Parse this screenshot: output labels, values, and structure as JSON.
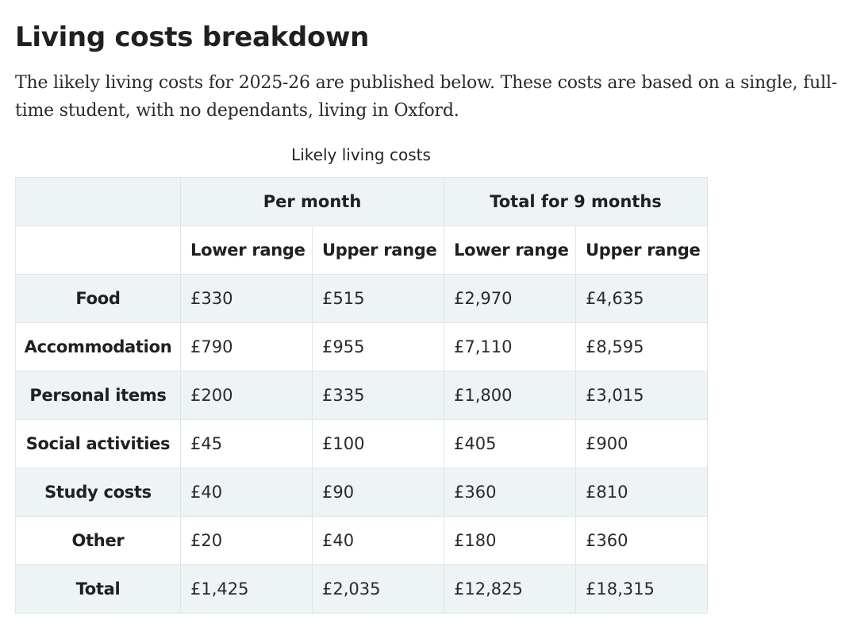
{
  "heading": "Living costs breakdown",
  "intro": "The likely living costs for 2025-26 are published below. These costs are based on a single, full-time student, with no dependants, living in Oxford.",
  "table": {
    "caption": "Likely living costs",
    "group_headers": [
      "Per month",
      "Total for 9 months"
    ],
    "sub_headers": [
      "Lower range",
      "Upper range",
      "Lower range",
      "Upper range"
    ],
    "rows": [
      {
        "label": "Food",
        "values": [
          "£330",
          "£515",
          "£2,970",
          "£4,635"
        ]
      },
      {
        "label": "Accommodation",
        "values": [
          "£790",
          "£955",
          "£7,110",
          "£8,595"
        ]
      },
      {
        "label": "Personal items",
        "values": [
          "£200",
          "£335",
          "£1,800",
          "£3,015"
        ]
      },
      {
        "label": "Social activities",
        "values": [
          "£45",
          "£100",
          "£405",
          "£900"
        ]
      },
      {
        "label": "Study costs",
        "values": [
          "£40",
          "£90",
          "£360",
          "£810"
        ]
      },
      {
        "label": "Other",
        "values": [
          "£20",
          "£40",
          "£180",
          "£360"
        ]
      },
      {
        "label": "Total",
        "values": [
          "£1,425",
          "£2,035",
          "£12,825",
          "£18,315"
        ]
      }
    ]
  },
  "colors": {
    "shaded_row": "#eef3f6",
    "border": "#dfe5ea",
    "text": "#2a2a2a"
  }
}
